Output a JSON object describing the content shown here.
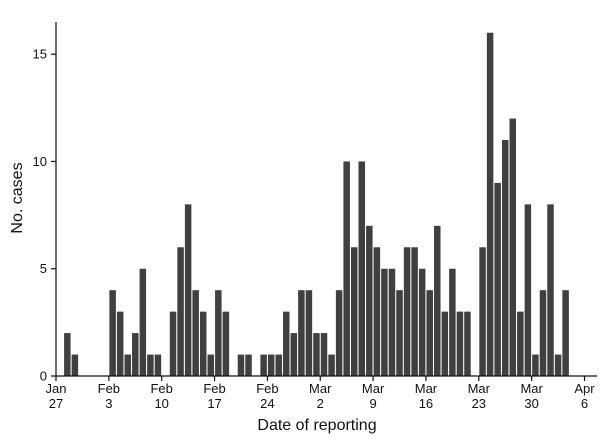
{
  "chart_data": {
    "type": "bar",
    "xlabel": "Date of reporting",
    "ylabel": "No. cases",
    "ylim": [
      0,
      16.5
    ],
    "y_ticks": [
      "0",
      "5",
      "10",
      "15"
    ],
    "x_ticks": [
      {
        "day": 0,
        "line1": "Jan",
        "line2": "27"
      },
      {
        "day": 7,
        "line1": "Feb",
        "line2": "3"
      },
      {
        "day": 14,
        "line1": "Feb",
        "line2": "10"
      },
      {
        "day": 21,
        "line1": "Feb",
        "line2": "17"
      },
      {
        "day": 28,
        "line1": "Feb",
        "line2": "24"
      },
      {
        "day": 35,
        "line1": "Mar",
        "line2": "2"
      },
      {
        "day": 42,
        "line1": "Mar",
        "line2": "9"
      },
      {
        "day": 49,
        "line1": "Mar",
        "line2": "16"
      },
      {
        "day": 56,
        "line1": "Mar",
        "line2": "23"
      },
      {
        "day": 63,
        "line1": "Mar",
        "line2": "30"
      },
      {
        "day": 70,
        "line1": "Apr",
        "line2": "6"
      }
    ],
    "start_date": "2020-01-27",
    "values": [
      0,
      2,
      1,
      0,
      0,
      0,
      0,
      4,
      3,
      1,
      2,
      5,
      1,
      1,
      0,
      3,
      6,
      8,
      4,
      3,
      1,
      4,
      3,
      0,
      1,
      1,
      0,
      1,
      1,
      1,
      3,
      2,
      4,
      4,
      2,
      2,
      1,
      4,
      10,
      6,
      10,
      7,
      6,
      5,
      5,
      4,
      6,
      6,
      5,
      4,
      7,
      3,
      5,
      3,
      3,
      0,
      6,
      16,
      9,
      11,
      12,
      3,
      8,
      1,
      4,
      8,
      1,
      4
    ],
    "bar_color": "#404040",
    "grid": false,
    "legend": "none"
  }
}
